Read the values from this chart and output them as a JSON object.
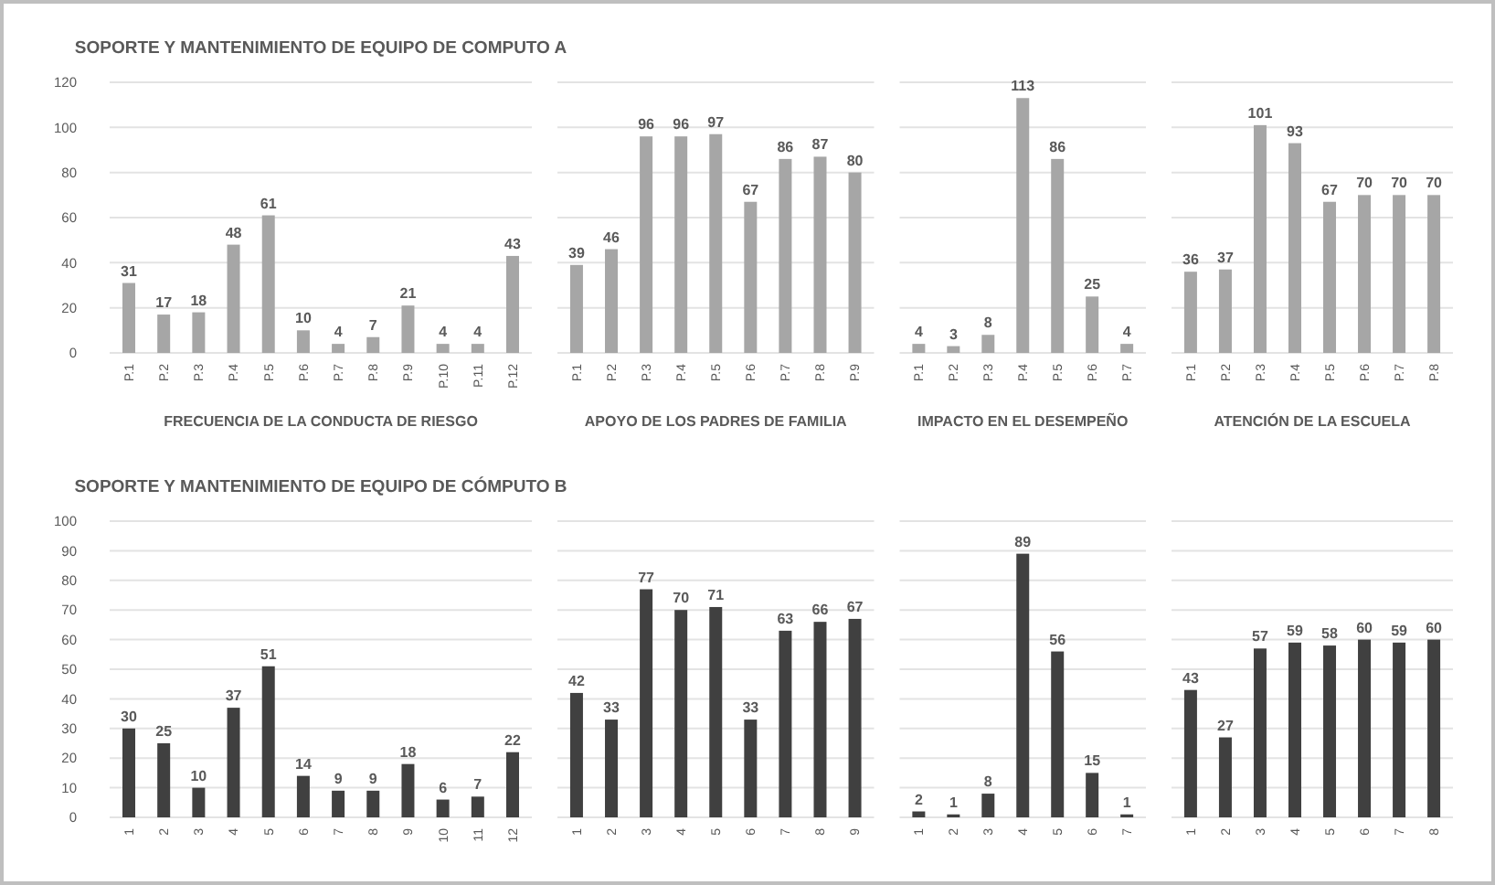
{
  "chart_data": [
    {
      "type": "bar",
      "title": "SOPORTE Y MANTENIMIENTO DE EQUIPO DE COMPUTO A",
      "xlabel": "FRECUENCIA DE LA CONDUCTA DE RIESGO",
      "categories": [
        "P.1",
        "P.2",
        "P.3",
        "P.4",
        "P.5",
        "P.6",
        "P.7",
        "P.8",
        "P.9",
        "P.10",
        "P.11",
        "P.12"
      ],
      "values": [
        31,
        17,
        18,
        48,
        61,
        10,
        4,
        7,
        21,
        4,
        4,
        43
      ],
      "color": "#a6a6a6",
      "ylim": [
        0,
        120
      ],
      "yticks": [
        0,
        20,
        40,
        60,
        80,
        100,
        120
      ],
      "grid": "y",
      "data_labels": true
    },
    {
      "type": "bar",
      "xlabel": "APOYO DE LOS PADRES DE FAMILIA",
      "categories": [
        "P.1",
        "P.2",
        "P.3",
        "P.4",
        "P.5",
        "P.6",
        "P.7",
        "P.8",
        "P.9"
      ],
      "values": [
        39,
        46,
        96,
        96,
        97,
        67,
        86,
        87,
        80
      ],
      "color": "#a6a6a6",
      "ylim": [
        0,
        120
      ],
      "yticks": [
        0,
        20,
        40,
        60,
        80,
        100,
        120
      ],
      "grid": "y",
      "data_labels": true,
      "tick_labels": "x"
    },
    {
      "type": "bar",
      "xlabel": "IMPACTO EN EL DESEMPEÑO",
      "categories": [
        "P.1",
        "P.2",
        "P.3",
        "P.4",
        "P.5",
        "P.6",
        "P.7"
      ],
      "values": [
        4,
        3,
        8,
        113,
        86,
        25,
        4
      ],
      "color": "#a6a6a6",
      "ylim": [
        0,
        120
      ],
      "yticks": [
        0,
        20,
        40,
        60,
        80,
        100,
        120
      ],
      "grid": "y",
      "data_labels": true,
      "tick_labels": "x"
    },
    {
      "type": "bar",
      "xlabel": "ATENCIÓN DE LA ESCUELA",
      "categories": [
        "P.1",
        "P.2",
        "P.3",
        "P.4",
        "P.5",
        "P.6",
        "P.7",
        "P.8"
      ],
      "values": [
        36,
        37,
        101,
        93,
        67,
        70,
        70,
        70
      ],
      "color": "#a6a6a6",
      "ylim": [
        0,
        120
      ],
      "yticks": [
        0,
        20,
        40,
        60,
        80,
        100,
        120
      ],
      "grid": "y",
      "data_labels": true,
      "tick_labels": "x"
    },
    {
      "type": "bar",
      "title": "SOPORTE Y MANTENIMIENTO DE EQUIPO DE CÓMPUTO B",
      "categories": [
        "1",
        "2",
        "3",
        "4",
        "5",
        "6",
        "7",
        "8",
        "9",
        "10",
        "11",
        "12"
      ],
      "values": [
        30,
        25,
        10,
        37,
        51,
        14,
        9,
        9,
        18,
        6,
        7,
        22
      ],
      "color": "#404040",
      "ylim": [
        0,
        100
      ],
      "yticks": [
        0,
        10,
        20,
        30,
        40,
        50,
        60,
        70,
        80,
        90,
        100
      ],
      "grid": "y",
      "data_labels": true
    },
    {
      "type": "bar",
      "categories": [
        "1",
        "2",
        "3",
        "4",
        "5",
        "6",
        "7",
        "8",
        "9"
      ],
      "values": [
        42,
        33,
        77,
        70,
        71,
        33,
        63,
        66,
        67
      ],
      "color": "#404040",
      "ylim": [
        0,
        100
      ],
      "yticks": [
        0,
        10,
        20,
        30,
        40,
        50,
        60,
        70,
        80,
        90,
        100
      ],
      "grid": "y",
      "data_labels": true,
      "tick_labels": "x"
    },
    {
      "type": "bar",
      "categories": [
        "1",
        "2",
        "3",
        "4",
        "5",
        "6",
        "7"
      ],
      "values": [
        2,
        1,
        8,
        89,
        56,
        15,
        1
      ],
      "color": "#404040",
      "ylim": [
        0,
        100
      ],
      "yticks": [
        0,
        10,
        20,
        30,
        40,
        50,
        60,
        70,
        80,
        90,
        100
      ],
      "grid": "y",
      "data_labels": true,
      "tick_labels": "x"
    },
    {
      "type": "bar",
      "categories": [
        "1",
        "2",
        "3",
        "4",
        "5",
        "6",
        "7",
        "8"
      ],
      "values": [
        43,
        27,
        57,
        59,
        58,
        60,
        59,
        60
      ],
      "color": "#404040",
      "ylim": [
        0,
        100
      ],
      "yticks": [
        0,
        10,
        20,
        30,
        40,
        50,
        60,
        70,
        80,
        90,
        100
      ],
      "grid": "y",
      "data_labels": true,
      "tick_labels": "x"
    }
  ]
}
